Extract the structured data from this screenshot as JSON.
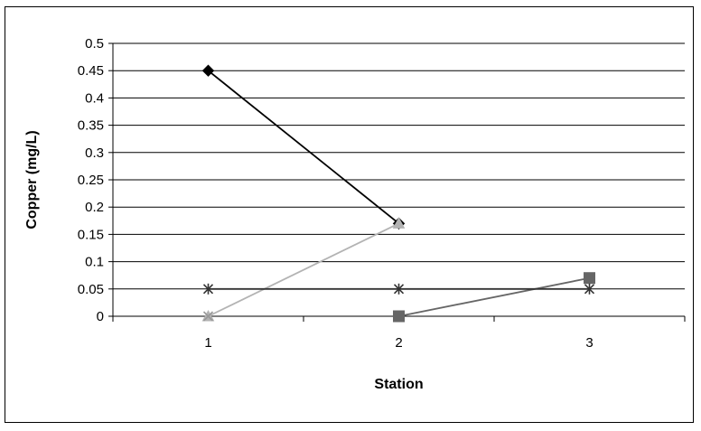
{
  "chart_data": {
    "type": "line",
    "title": "",
    "xlabel": "Station",
    "ylabel": "Copper (mg/L)",
    "categories": [
      "1",
      "2",
      "3"
    ],
    "ylim": [
      0,
      0.5
    ],
    "yticks": [
      "0",
      "0.05",
      "0.1",
      "0.15",
      "0.2",
      "0.25",
      "0.3",
      "0.35",
      "0.4",
      "0.45",
      "0.5"
    ],
    "grid": true,
    "legend": "none",
    "series": [
      {
        "values": [
          0.45,
          0.17,
          null
        ],
        "color": "#000000",
        "marker": "diamond"
      },
      {
        "values": [
          0,
          0.17,
          null
        ],
        "color": "#b3b3b3",
        "marker": "triangle"
      },
      {
        "values": [
          null,
          0,
          0.07
        ],
        "color": "#666666",
        "marker": "square"
      },
      {
        "values": [
          0.05,
          0.05,
          0.05
        ],
        "color": "#333333",
        "marker": "star"
      },
      {
        "values": [
          0,
          null,
          null
        ],
        "color": "#999999",
        "marker": "x"
      }
    ]
  }
}
